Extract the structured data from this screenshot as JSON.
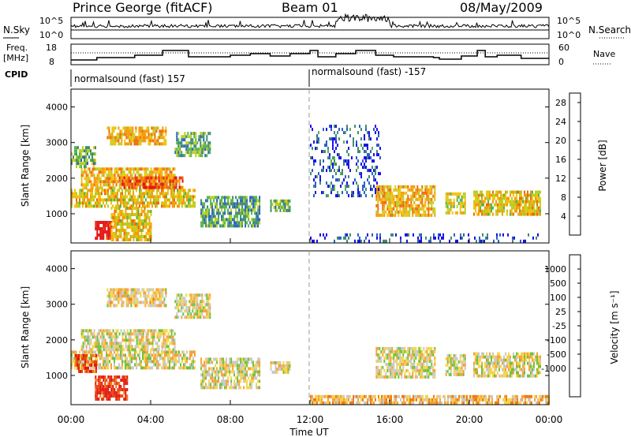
{
  "header": {
    "title": "Prince George (fitACF)",
    "beam": "Beam 01",
    "date": "08/May/2009"
  },
  "nsky_panel": {
    "left_label": "N.Sky",
    "right_label": "N.Search",
    "left_ticks": [
      "10^5",
      "10^0"
    ],
    "right_ticks": [
      "10^5",
      "10^0"
    ]
  },
  "freq_panel": {
    "left_label_1": "Freq.",
    "left_label_2": "[MHz]",
    "right_label": "Nave",
    "left_ticks": [
      "18",
      "8"
    ],
    "right_ticks": [
      "60",
      "0"
    ]
  },
  "cpid": {
    "label": "CPID",
    "segments": [
      {
        "start_hour": 0,
        "text": "normalsound (fast) 157"
      },
      {
        "start_hour": 12,
        "text": "normalsound (fast) -157"
      }
    ]
  },
  "time_axis": {
    "label": "Time UT",
    "ticks": [
      "00:00",
      "04:00",
      "08:00",
      "12:00",
      "16:00",
      "20:00",
      "00:00"
    ],
    "range_hours": [
      0,
      24
    ]
  },
  "chart_data": [
    {
      "type": "heatmap",
      "name": "power",
      "ylabel": "Slant Range [km]",
      "ylim": [
        180,
        4500
      ],
      "yticks": [
        "1000",
        "2000",
        "3000",
        "4000"
      ],
      "colorbar": {
        "label": "Power [dB]",
        "ticks": [
          "4",
          "8",
          "12",
          "16",
          "20",
          "24",
          "28"
        ],
        "range": [
          0,
          30
        ],
        "colors": [
          "#1a10e8",
          "#2a5fc4",
          "#3e8c6e",
          "#56b24a",
          "#b7cf22",
          "#f3c20a",
          "#f49a0a",
          "#ef6a0c",
          "#e63512",
          "#e30f0f"
        ]
      },
      "regions": [
        {
          "t": [
            0.0,
            6.2
          ],
          "r": [
            1200,
            1700
          ],
          "level": 0.55
        },
        {
          "t": [
            0.5,
            5.2
          ],
          "r": [
            1700,
            2300
          ],
          "level": 0.6
        },
        {
          "t": [
            2.4,
            5.6
          ],
          "r": [
            1700,
            2050
          ],
          "level": 0.8
        },
        {
          "t": [
            1.8,
            4.8
          ],
          "r": [
            3000,
            3450
          ],
          "level": 0.6
        },
        {
          "t": [
            5.2,
            7.0
          ],
          "r": [
            2600,
            3300
          ],
          "level": 0.3
        },
        {
          "t": [
            0.0,
            1.2
          ],
          "r": [
            2300,
            2900
          ],
          "level": 0.35
        },
        {
          "t": [
            1.2,
            2.0
          ],
          "r": [
            350,
            800
          ],
          "level": 0.95
        },
        {
          "t": [
            2.0,
            4.0
          ],
          "r": [
            300,
            1200
          ],
          "level": 0.55
        },
        {
          "t": [
            6.5,
            9.5
          ],
          "r": [
            700,
            1500
          ],
          "level": 0.3
        },
        {
          "t": [
            10.0,
            11.0
          ],
          "r": [
            1100,
            1400
          ],
          "level": 0.35
        },
        {
          "t": [
            15.3,
            18.3
          ],
          "r": [
            1000,
            1800
          ],
          "level": 0.6
        },
        {
          "t": [
            18.8,
            19.8
          ],
          "r": [
            1000,
            1600
          ],
          "level": 0.5
        },
        {
          "t": [
            20.2,
            23.6
          ],
          "r": [
            1000,
            1650
          ],
          "level": 0.55
        },
        {
          "t": [
            12.0,
            15.5
          ],
          "r": [
            1500,
            3500
          ],
          "level": 0.15
        },
        {
          "t": [
            12.0,
            24.0
          ],
          "r": [
            200,
            450
          ],
          "level": 0.1
        }
      ]
    },
    {
      "type": "heatmap",
      "name": "velocity",
      "ylabel": "Slant Range [km]",
      "ylim": [
        180,
        4500
      ],
      "yticks": [
        "1000",
        "2000",
        "3000",
        "4000"
      ],
      "colorbar": {
        "label": "Velocity [m s⁻¹]",
        "ticks": [
          "1000",
          "500",
          "100",
          "25",
          "-25",
          "-100",
          "-500",
          "-1000"
        ],
        "colors": [
          "#1f3fb8",
          "#3666c8",
          "#3b8f52",
          "#6ec23a",
          "#c8c8c8",
          "#f5d44a",
          "#f4a23a",
          "#f07a18",
          "#e8420f",
          "#e3160f"
        ]
      },
      "regions": [
        {
          "t": [
            0.0,
            6.2
          ],
          "r": [
            1200,
            1700
          ],
          "level": 0.5
        },
        {
          "t": [
            0.5,
            5.2
          ],
          "r": [
            1700,
            2300
          ],
          "level": 0.5
        },
        {
          "t": [
            1.8,
            4.8
          ],
          "r": [
            3000,
            3450
          ],
          "level": 0.55
        },
        {
          "t": [
            5.2,
            7.0
          ],
          "r": [
            2600,
            3300
          ],
          "level": 0.5
        },
        {
          "t": [
            0.2,
            1.3
          ],
          "r": [
            1100,
            1600
          ],
          "level": 0.85
        },
        {
          "t": [
            1.2,
            2.8
          ],
          "r": [
            300,
            1000
          ],
          "level": 0.92
        },
        {
          "t": [
            6.5,
            9.5
          ],
          "r": [
            700,
            1500
          ],
          "level": 0.5
        },
        {
          "t": [
            10.0,
            11.0
          ],
          "r": [
            1100,
            1400
          ],
          "level": 0.5
        },
        {
          "t": [
            15.3,
            18.3
          ],
          "r": [
            1000,
            1800
          ],
          "level": 0.5
        },
        {
          "t": [
            18.8,
            19.8
          ],
          "r": [
            1000,
            1600
          ],
          "level": 0.5
        },
        {
          "t": [
            20.2,
            23.6
          ],
          "r": [
            1000,
            1650
          ],
          "level": 0.5
        },
        {
          "t": [
            12.0,
            24.0
          ],
          "r": [
            200,
            450
          ],
          "level": 0.6
        }
      ]
    }
  ]
}
